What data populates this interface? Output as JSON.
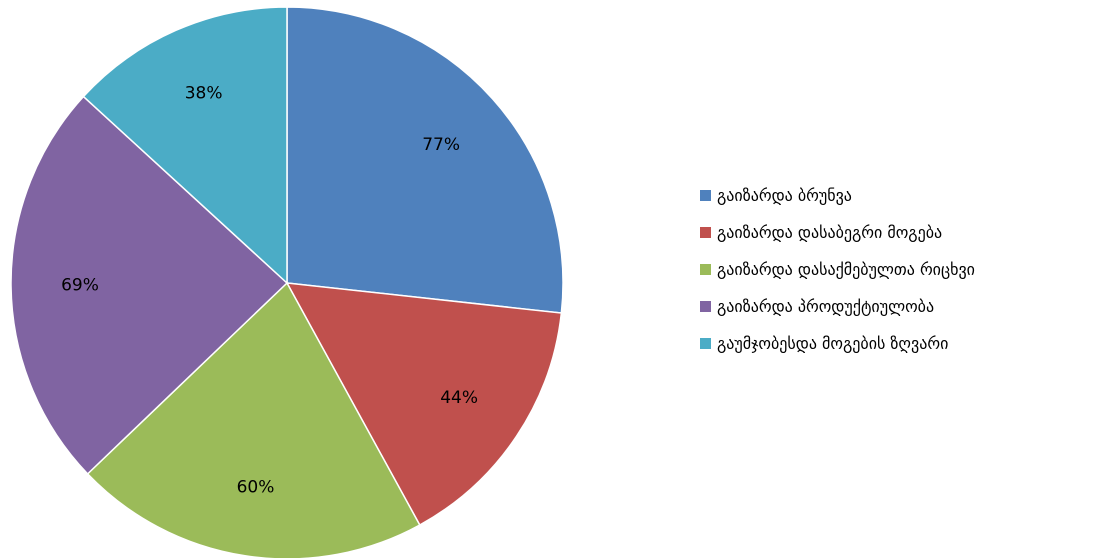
{
  "chart_data": {
    "type": "pie",
    "categories": [
      "გაიზარდა ბრუნვა",
      "გაიზარდა დასაბეგრი მოგება",
      "გაიზარდა დასაქმებულთა რიცხვი",
      "გაიზარდა პროდუქტიულობა",
      "გაუმჯობესდა მოგების ზღვარი"
    ],
    "values": [
      77,
      44,
      60,
      69,
      38
    ],
    "value_labels": [
      "77%",
      "44%",
      "60%",
      "69%",
      "38%"
    ],
    "colors": [
      "#4F81BD",
      "#C0504D",
      "#9BBB59",
      "#8064A2",
      "#4BACC6"
    ],
    "legend": {
      "position": "right"
    },
    "title": ""
  }
}
